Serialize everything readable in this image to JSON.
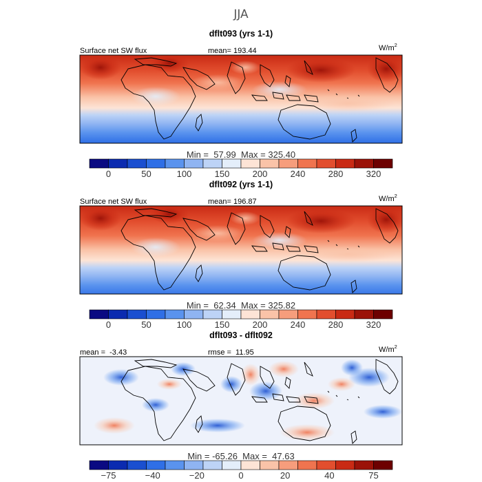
{
  "figure": {
    "title": "JJA"
  },
  "chart_data": [
    {
      "type": "heatmap",
      "title": "dflt093 (yrs 1-1)",
      "field_label": "Surface net SW flux",
      "stat_text": "mean= 193.44",
      "units": "W/m",
      "units_exp": "2",
      "minmax_text": "Min =  57.99  Max = 325.40",
      "mean": 193.44,
      "min": 57.99,
      "max": 325.4,
      "colorbar": {
        "ticks": [
          "0",
          "50",
          "100",
          "150",
          "200",
          "240",
          "280",
          "320"
        ],
        "colors": [
          "#0a0a82",
          "#0b2bb0",
          "#1a4fd0",
          "#2f6fe6",
          "#5a93ee",
          "#8fb4f2",
          "#bdd3f6",
          "#e4eefa",
          "#fde4d6",
          "#fac3a8",
          "#f69d7c",
          "#f0744f",
          "#e24e2e",
          "#c92a14",
          "#9b1208",
          "#6d0000"
        ]
      }
    },
    {
      "type": "heatmap",
      "title": "dflt092 (yrs 1-1)",
      "field_label": "Surface net SW flux",
      "stat_text": "mean= 196.87",
      "units": "W/m",
      "units_exp": "2",
      "minmax_text": "Min =  62.34  Max = 325.82",
      "mean": 196.87,
      "min": 62.34,
      "max": 325.82,
      "colorbar": {
        "ticks": [
          "0",
          "50",
          "100",
          "150",
          "200",
          "240",
          "280",
          "320"
        ],
        "colors": [
          "#0a0a82",
          "#0b2bb0",
          "#1a4fd0",
          "#2f6fe6",
          "#5a93ee",
          "#8fb4f2",
          "#bdd3f6",
          "#e4eefa",
          "#fde4d6",
          "#fac3a8",
          "#f69d7c",
          "#f0744f",
          "#e24e2e",
          "#c92a14",
          "#9b1208",
          "#6d0000"
        ]
      }
    },
    {
      "type": "heatmap",
      "title": "dflt093 - dflt092",
      "field_label": "mean =  -3.43",
      "stat_text": "rmse =  11.95",
      "units": "W/m",
      "units_exp": "2",
      "minmax_text": "Min = -65.26  Max =  47.63",
      "mean": -3.43,
      "rmse": 11.95,
      "min": -65.26,
      "max": 47.63,
      "colorbar": {
        "ticks": [
          "−75",
          "−40",
          "−20",
          "0",
          "20",
          "40",
          "75"
        ],
        "colors": [
          "#0a0a82",
          "#0b2bb0",
          "#1a4fd0",
          "#2f6fe6",
          "#5a93ee",
          "#8fb4f2",
          "#bdd3f6",
          "#e4eefa",
          "#fde4d6",
          "#fac3a8",
          "#f69d7c",
          "#f0744f",
          "#e24e2e",
          "#c92a14",
          "#9b1208",
          "#6d0000"
        ]
      }
    }
  ]
}
